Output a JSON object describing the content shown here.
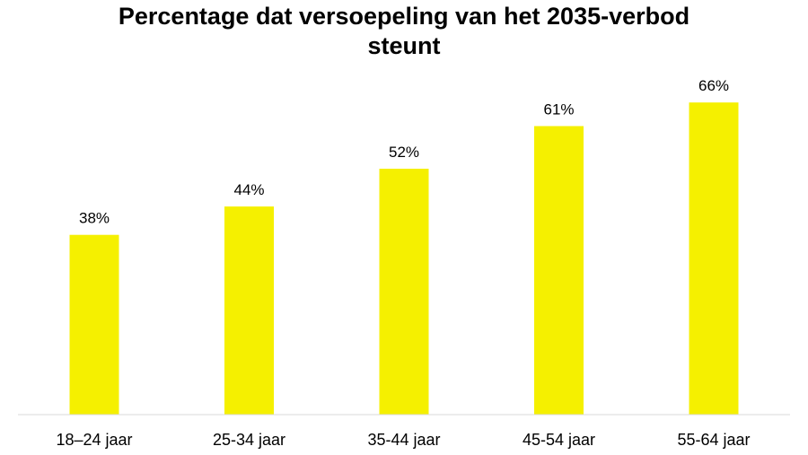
{
  "chart_data": {
    "type": "bar",
    "title_lines": [
      "Percentage dat versoepeling van het 2035-verbod",
      "steunt"
    ],
    "categories": [
      "18–24 jaar",
      "25-34 jaar",
      "35-44 jaar",
      "45-54 jaar",
      "55-64 jaar"
    ],
    "values": [
      38,
      44,
      52,
      61,
      66
    ],
    "data_labels": [
      "38%",
      "44%",
      "52%",
      "61%",
      "66%"
    ],
    "xlabel": "",
    "ylabel": "",
    "ylim": [
      0,
      100
    ],
    "grid": false,
    "legend": "none",
    "bar_color": "#F5F000",
    "axis_color": "#D9D9D9"
  }
}
